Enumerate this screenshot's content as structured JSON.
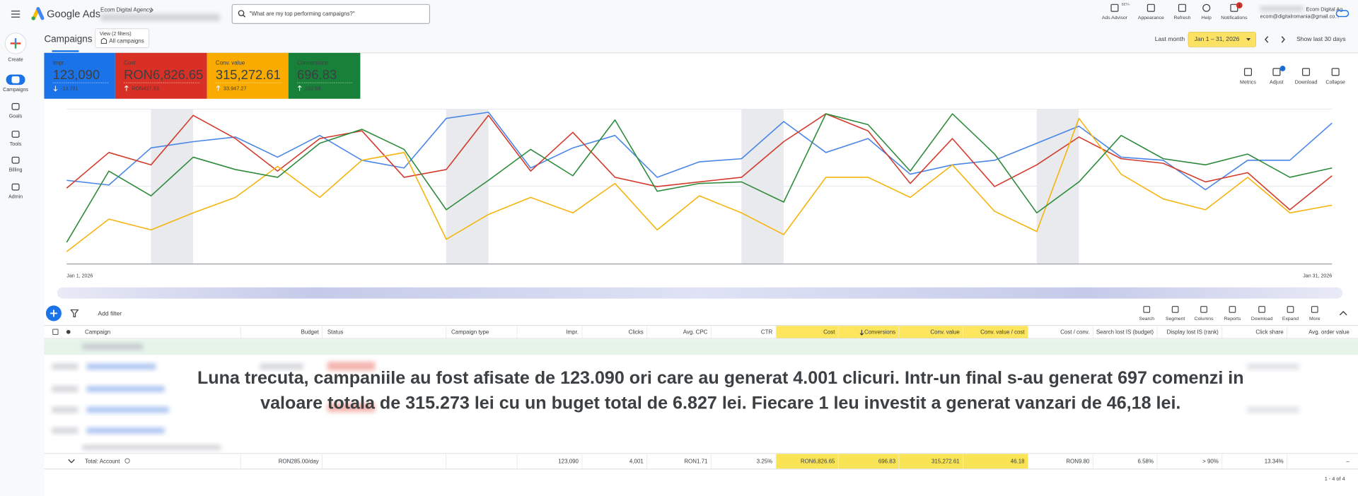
{
  "header": {
    "brand": "Google Ads",
    "account": "Ecom Digital Agency",
    "search_placeholder": "\"What are my top performing campaigns?\"",
    "actions": [
      "Ads Advisor",
      "Appearance",
      "Refresh",
      "Help",
      "Notifications"
    ],
    "beta": "BETA",
    "notification_count": "1",
    "user_name": "Ecom Digital Ag...",
    "user_email": "ecom@digitalromania@gmail.co..."
  },
  "sidebar": [
    "Create",
    "Campaigns",
    "Goals",
    "Tools",
    "Billing",
    "Admin"
  ],
  "page": {
    "title": "Campaigns",
    "view_label": "View (2 filters)",
    "view_value": "All campaigns",
    "date_label": "Last month",
    "date_range": "Jan 1 – 31, 2026",
    "show_last": "Show last 30 days"
  },
  "metric_cards": [
    {
      "label": "Impr.",
      "value": "123,090",
      "change": "-13,791",
      "color": "#1a73e8"
    },
    {
      "label": "Cost",
      "value": "RON6,826.65",
      "change": "RON427.53",
      "color": "#d93025"
    },
    {
      "label": "Conv. value",
      "value": "315,272.61",
      "change": "33,947.27",
      "color": "#f9ab00"
    },
    {
      "label": "Conversions",
      "value": "696.83",
      "change": "152.68",
      "color": "#188038"
    }
  ],
  "chart_tools": [
    "Metrics",
    "Adjust",
    "Download",
    "Collapse"
  ],
  "adjust_badge": "3",
  "chart_data": {
    "type": "line",
    "categories": [
      "Jan 1, 2026",
      null,
      null,
      null,
      null,
      null,
      null,
      null,
      null,
      null,
      null,
      null,
      null,
      null,
      null,
      null,
      null,
      null,
      null,
      null,
      null,
      null,
      null,
      null,
      null,
      null,
      null,
      null,
      null,
      null,
      "Jan 31, 2026"
    ],
    "ylim": [
      0,
      100
    ],
    "series": [
      {
        "color": "#4a86e8",
        "values": [
          54,
          51,
          75,
          79,
          82,
          69,
          83,
          67,
          62,
          94,
          98,
          62,
          75,
          83,
          56,
          66,
          68,
          92,
          72,
          81,
          58,
          64,
          67,
          78,
          89,
          69,
          67,
          48,
          67,
          67,
          91
        ]
      },
      {
        "color": "#d33b2c",
        "values": [
          49,
          72,
          64,
          96,
          81,
          60,
          81,
          86,
          56,
          61,
          96,
          60,
          85,
          56,
          50,
          53,
          56,
          79,
          97,
          86,
          52,
          81,
          50,
          64,
          82,
          68,
          65,
          53,
          59,
          35,
          57
        ]
      },
      {
        "color": "#f6b40e",
        "values": [
          8,
          29,
          22,
          33,
          43,
          63,
          43,
          67,
          72,
          16,
          32,
          43,
          33,
          52,
          22,
          44,
          33,
          19,
          56,
          56,
          43,
          64,
          34,
          21,
          94,
          58,
          42,
          35,
          56,
          33,
          38
        ]
      },
      {
        "color": "#2e8b3c",
        "values": [
          14,
          60,
          44,
          69,
          61,
          56,
          78,
          87,
          74,
          35,
          54,
          74,
          57,
          93,
          47,
          52,
          53,
          40,
          97,
          90,
          60,
          97,
          71,
          33,
          53,
          83,
          68,
          64,
          71,
          56,
          62
        ]
      }
    ]
  },
  "table_toolbar": {
    "add_filter": "Add filter",
    "tools": [
      "Search",
      "Segment",
      "Columns",
      "Reports",
      "Download",
      "Expand",
      "More"
    ]
  },
  "table": {
    "columns": [
      "Campaign",
      "Budget",
      "Status",
      "Campaign type",
      "Impr.",
      "Clicks",
      "Avg. CPC",
      "CTR",
      "Cost",
      "Conversions",
      "Conv. value",
      "Conv. value / cost",
      "Cost / conv.",
      "Search lost IS (budget)",
      "Display lost IS (rank)",
      "Click share",
      "Avg. order value"
    ],
    "total_row": [
      "Total: Account",
      "RON285.00/day",
      null,
      null,
      "123,090",
      "4,001",
      "RON1.71",
      "3.25%",
      "RON6,826.65",
      "696.83",
      "315,272.61",
      "46.18",
      "RON9.80",
      "6.58%",
      "> 90%",
      "13.34%",
      "–"
    ],
    "pagination": "1 - 4 of 4"
  },
  "overlay_text": [
    "Luna trecuta, campaniile au fost afisate de 123.090 ori care au generat 4.001 clicuri. Intr-un final s-au generat 697 comenzi in",
    "valoare totala de 315.273 lei cu un buget total de 6.827 lei. Fiecare 1 leu investit a generat vanzari de 46,18 lei."
  ]
}
